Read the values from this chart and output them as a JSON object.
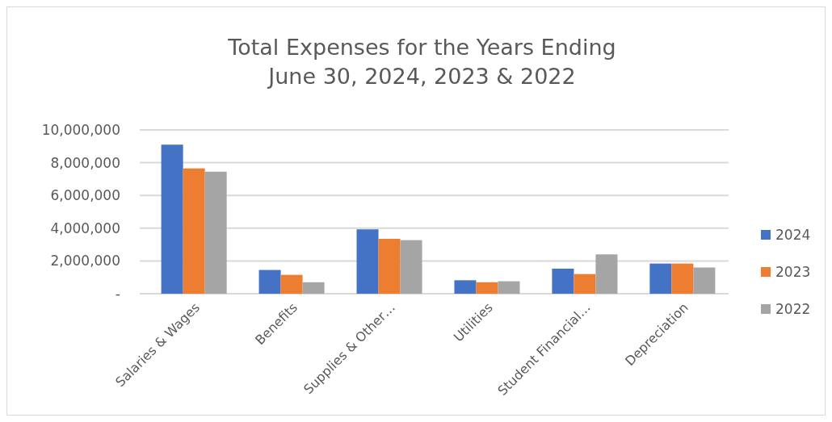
{
  "chart_data": {
    "type": "bar",
    "title": "Total Expenses for the Years Ending\nJune 30, 2024, 2023 & 2022",
    "categories": [
      "Salaries & Wages",
      "Benefits",
      "Supplies & Other…",
      "Utilities",
      "Student Financial…",
      "Depreciation"
    ],
    "series": [
      {
        "name": "2024",
        "color": "#4472c4",
        "values": [
          9100000,
          1450000,
          3930000,
          820000,
          1530000,
          1840000
        ]
      },
      {
        "name": "2023",
        "color": "#ed7d31",
        "values": [
          7650000,
          1150000,
          3350000,
          700000,
          1200000,
          1840000
        ]
      },
      {
        "name": "2022",
        "color": "#a5a5a5",
        "values": [
          7450000,
          700000,
          3270000,
          760000,
          2400000,
          1600000
        ]
      }
    ],
    "ylim": [
      0,
      10000000
    ],
    "yticks": [
      {
        "value": 0,
        "label": "-"
      },
      {
        "value": 2000000,
        "label": "2,000,000"
      },
      {
        "value": 4000000,
        "label": "4,000,000"
      },
      {
        "value": 6000000,
        "label": "6,000,000"
      },
      {
        "value": 8000000,
        "label": "8,000,000"
      },
      {
        "value": 10000000,
        "label": "10,000,000"
      }
    ],
    "grid": "y",
    "legend": "right"
  }
}
